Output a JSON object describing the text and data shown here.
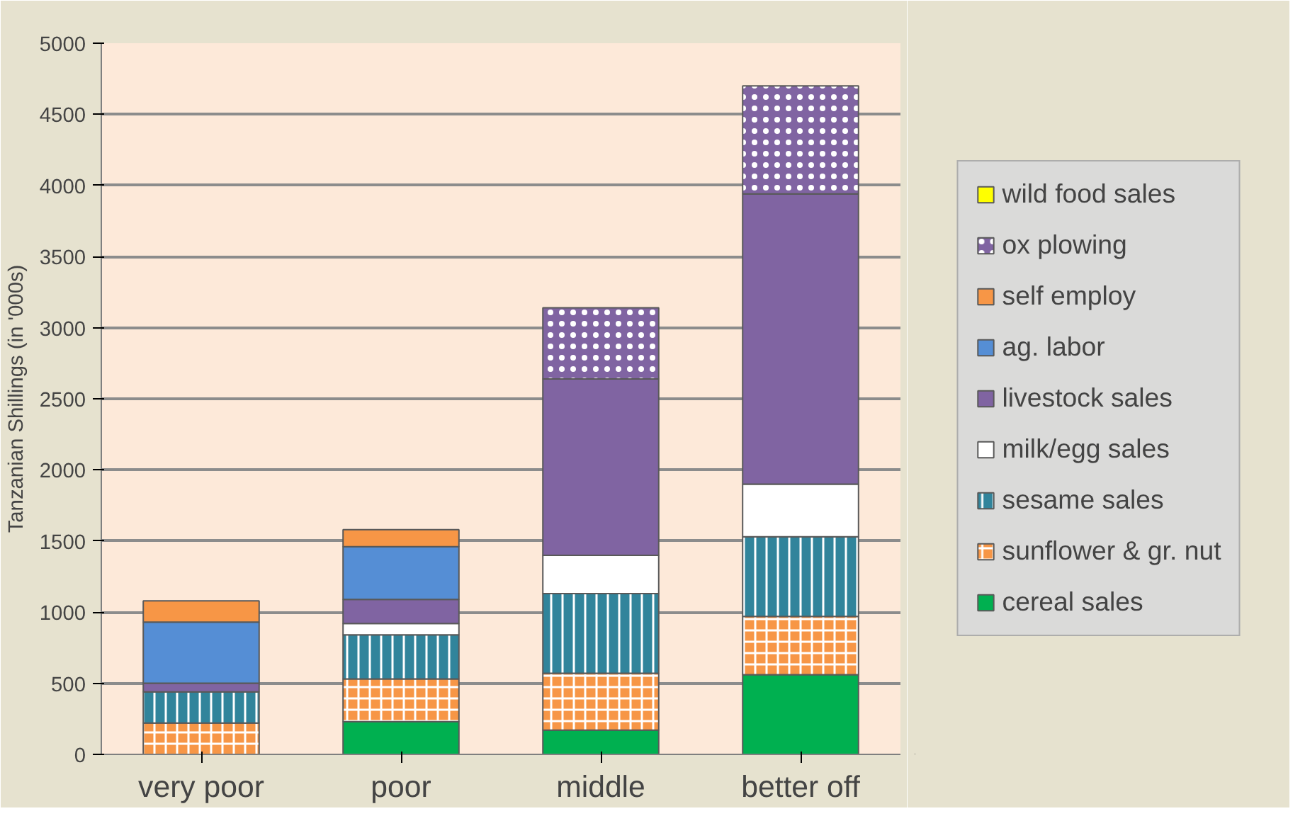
{
  "chart_data": {
    "type": "bar",
    "stacked": true,
    "ylabel": "Tanzanian Shillings (in '000s)",
    "categories": [
      "very poor",
      "poor",
      "middle",
      "better off"
    ],
    "series": [
      {
        "name": "cereal sales",
        "color": "#00b050",
        "values": [
          0,
          230,
          170,
          560
        ]
      },
      {
        "name": "sunflower & gr. nut",
        "color": "#f79646",
        "values": [
          220,
          300,
          400,
          410
        ]
      },
      {
        "name": "sesame sales",
        "color": "#31849b",
        "values": [
          220,
          310,
          560,
          560
        ]
      },
      {
        "name": "milk/egg sales",
        "color": "#ffffff",
        "values": [
          0,
          80,
          270,
          370
        ]
      },
      {
        "name": "livestock sales",
        "color": "#8064a2",
        "values": [
          60,
          170,
          1240,
          2040
        ]
      },
      {
        "name": "ag. labor",
        "color": "#558ed5",
        "values": [
          430,
          370,
          0,
          0
        ]
      },
      {
        "name": "self employ",
        "color": "#f79646",
        "values": [
          150,
          120,
          0,
          0
        ]
      },
      {
        "name": "ox plowing",
        "color": "#8064a2",
        "values": [
          0,
          0,
          500,
          760
        ]
      },
      {
        "name": "wild food sales",
        "color": "#ffff00",
        "values": [
          0,
          0,
          0,
          0
        ]
      }
    ],
    "ylim": [
      0,
      5000
    ],
    "yticks": [
      0,
      500,
      1000,
      1500,
      2000,
      2500,
      3000,
      3500,
      4000,
      4500,
      5000
    ],
    "grid": "y",
    "legend": "right"
  }
}
